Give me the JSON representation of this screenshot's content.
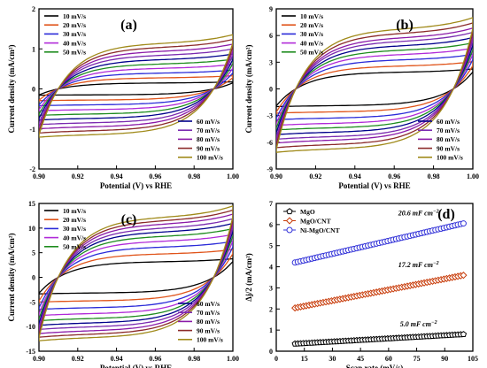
{
  "colors": {
    "10 mV/s": "#000000",
    "20 mV/s": "#e0541a",
    "30 mV/s": "#2a2ad8",
    "40 mV/s": "#b02ad8",
    "50 mV/s": "#1e8c1e",
    "60 mV/s": "#00008b",
    "70 mV/s": "#7a2ab0",
    "80 mV/s": "#8b1aa8",
    "90 mV/s": "#8b2a2a",
    "100 mV/s": "#a08a1a",
    "MgO": "#000000",
    "MgO/CNT": "#c83c0a",
    "Ni-MgO/CNT": "#3232d8"
  },
  "chart_data": [
    {
      "type": "line",
      "panel_label": "(a)",
      "xlabel": "Potential (V) vs RHE",
      "ylabel": "Current density (mA/cm²)",
      "xlim": [
        0.9,
        1.0
      ],
      "ylim": [
        -2,
        2
      ],
      "xticks": [
        "0.90",
        "0.92",
        "0.94",
        "0.96",
        "0.98",
        "1.00"
      ],
      "yticks": [
        "-2",
        "-1",
        "0",
        "1",
        "2"
      ],
      "legend_top": [
        "10 mV/s",
        "20 mV/s",
        "30 mV/s",
        "40 mV/s",
        "50 mV/s"
      ],
      "legend_bottom": [
        "60 mV/s",
        "70 mV/s",
        "80 mV/s",
        "90 mV/s",
        "100 mV/s"
      ],
      "series": [
        {
          "name": "10 mV/s",
          "i": 0.15
        },
        {
          "name": "20 mV/s",
          "i": 0.28
        },
        {
          "name": "30 mV/s",
          "i": 0.4
        },
        {
          "name": "40 mV/s",
          "i": 0.52
        },
        {
          "name": "50 mV/s",
          "i": 0.63
        },
        {
          "name": "60 mV/s",
          "i": 0.74
        },
        {
          "name": "70 mV/s",
          "i": 0.85
        },
        {
          "name": "80 mV/s",
          "i": 0.95
        },
        {
          "name": "90 mV/s",
          "i": 1.05
        },
        {
          "name": "100 mV/s",
          "i": 1.15
        }
      ]
    },
    {
      "type": "line",
      "panel_label": "(b)",
      "xlabel": "Potential (V) vs RHE",
      "ylabel": "Current density (mA/cm²)",
      "xlim": [
        0.9,
        1.0
      ],
      "ylim": [
        -9,
        9
      ],
      "xticks": [
        "0.90",
        "0.92",
        "0.94",
        "0.96",
        "0.98",
        "1.00"
      ],
      "yticks": [
        "-9",
        "-6",
        "-3",
        "0",
        "3",
        "6",
        "9"
      ],
      "legend_top": [
        "10 mV/s",
        "20 mV/s",
        "30 mV/s",
        "40 mV/s",
        "50 mV/s"
      ],
      "legend_bottom": [
        "60 mV/s",
        "70 mV/s",
        "80 mV/s",
        "90 mV/s",
        "100 mV/s"
      ],
      "series": [
        {
          "name": "10 mV/s",
          "i": 1.9
        },
        {
          "name": "20 mV/s",
          "i": 2.6
        },
        {
          "name": "30 mV/s",
          "i": 3.3
        },
        {
          "name": "40 mV/s",
          "i": 3.9
        },
        {
          "name": "50 mV/s",
          "i": 4.4
        },
        {
          "name": "60 mV/s",
          "i": 4.9
        },
        {
          "name": "70 mV/s",
          "i": 5.4
        },
        {
          "name": "80 mV/s",
          "i": 5.8
        },
        {
          "name": "90 mV/s",
          "i": 6.3
        },
        {
          "name": "100 mV/s",
          "i": 6.8
        }
      ]
    },
    {
      "type": "line",
      "panel_label": "(c)",
      "xlabel": "Potential (V) vs RHE",
      "ylabel": "Current density (mA/cm²)",
      "xlim": [
        0.9,
        1.0
      ],
      "ylim": [
        -15,
        15
      ],
      "xticks": [
        "0.90",
        "0.92",
        "0.94",
        "0.96",
        "0.98",
        "1.00"
      ],
      "yticks": [
        "-15",
        "-10",
        "-5",
        "0",
        "5",
        "10",
        "15"
      ],
      "legend_top": [
        "10 mV/s",
        "20 mV/s",
        "30 mV/s",
        "40 mV/s",
        "50 mV/s"
      ],
      "legend_bottom": [
        "60 mV/s",
        "70 mV/s",
        "80 mV/s",
        "90 mV/s",
        "100 mV/s"
      ],
      "series": [
        {
          "name": "10 mV/s",
          "i": 3.2
        },
        {
          "name": "20 mV/s",
          "i": 4.8
        },
        {
          "name": "30 mV/s",
          "i": 6.2
        },
        {
          "name": "40 mV/s",
          "i": 7.4
        },
        {
          "name": "50 mV/s",
          "i": 8.4
        },
        {
          "name": "60 mV/s",
          "i": 9.3
        },
        {
          "name": "70 mV/s",
          "i": 10.1
        },
        {
          "name": "80 mV/s",
          "i": 10.9
        },
        {
          "name": "90 mV/s",
          "i": 11.6
        },
        {
          "name": "100 mV/s",
          "i": 12.3
        }
      ]
    },
    {
      "type": "scatter",
      "panel_label": "(d)",
      "xlabel": "Scan rate (mV/s)",
      "ylabel": "Δj/2 (mA/cm²)",
      "xlim": [
        0,
        105
      ],
      "ylim": [
        0,
        7
      ],
      "xticks": [
        "0",
        "15",
        "30",
        "45",
        "60",
        "75",
        "90",
        "105"
      ],
      "yticks": [
        "0",
        "1",
        "2",
        "3",
        "4",
        "5",
        "6",
        "7"
      ],
      "series": [
        {
          "name": "MgO",
          "marker": "pentagon",
          "x0": 10,
          "x1": 100,
          "y0": 0.35,
          "slope": 0.005,
          "annotation": "5.0 mF cm",
          "annotation_sup": "−2"
        },
        {
          "name": "MgO/CNT",
          "marker": "diamond",
          "x0": 10,
          "x1": 100,
          "y0": 2.05,
          "slope": 0.0172,
          "annotation": "17.2 mF cm",
          "annotation_sup": "−2"
        },
        {
          "name": "Ni-MgO/CNT",
          "marker": "circle",
          "x0": 10,
          "x1": 100,
          "y0": 4.2,
          "slope": 0.0206,
          "annotation": "20.6 mF cm",
          "annotation_sup": "−2"
        }
      ]
    }
  ]
}
